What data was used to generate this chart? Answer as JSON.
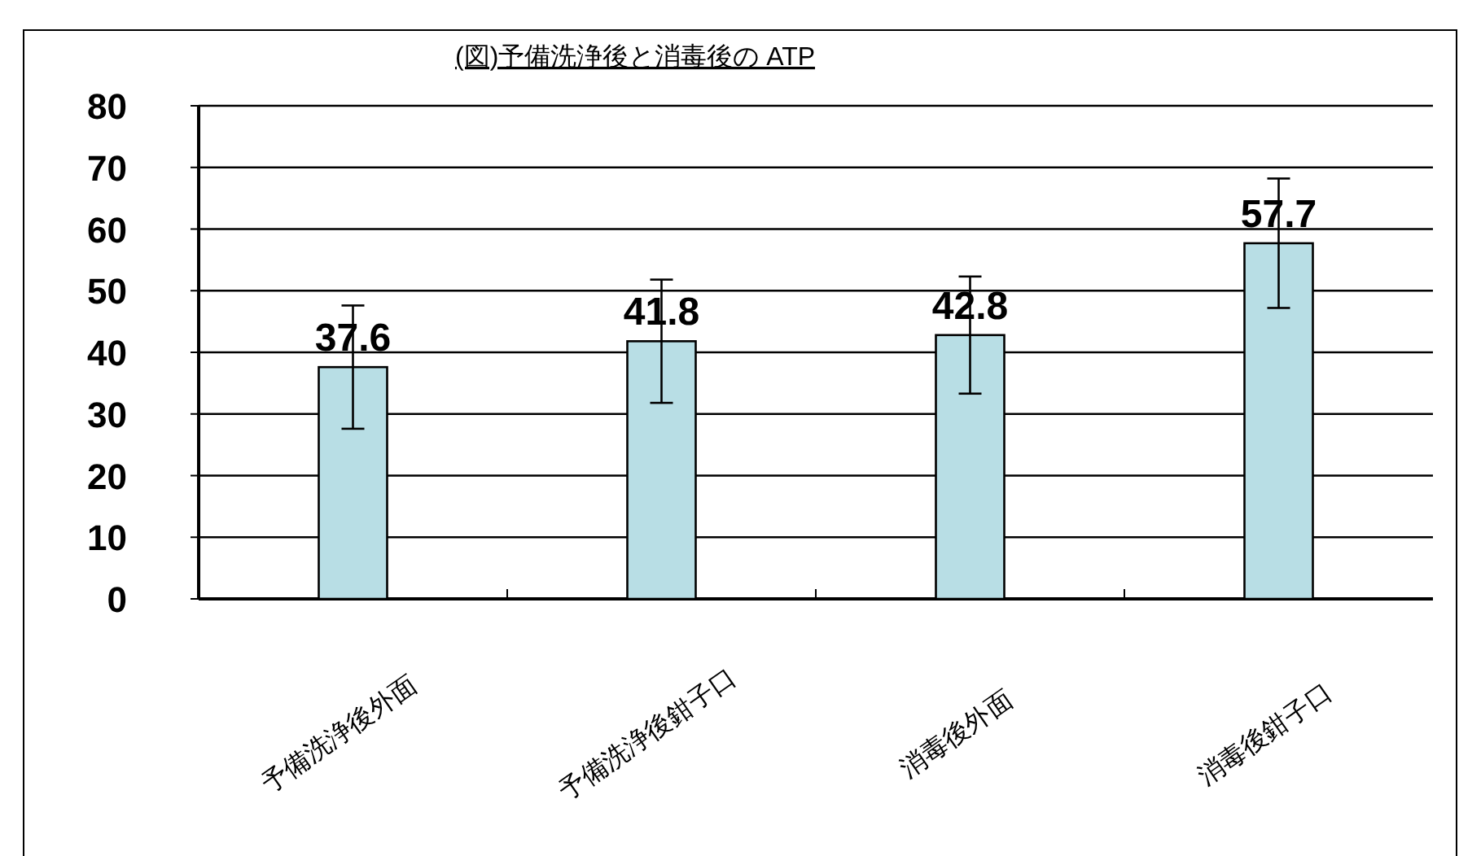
{
  "chart_data": {
    "type": "bar",
    "title": "(図)予備洗浄後と消毒後の ATP",
    "categories": [
      "予備洗浄後外面",
      "予備洗浄後鉗子口",
      "消毒後外面",
      "消毒後鉗子口"
    ],
    "values": [
      37.6,
      41.8,
      42.8,
      57.7
    ],
    "errors": [
      10,
      10,
      9.5,
      10.5
    ],
    "color": "#b8dee5",
    "ylim": [
      0,
      80
    ],
    "yticks": [
      0,
      10,
      20,
      30,
      40,
      50,
      60,
      70,
      80
    ],
    "grid": "y",
    "data_labels": true
  }
}
